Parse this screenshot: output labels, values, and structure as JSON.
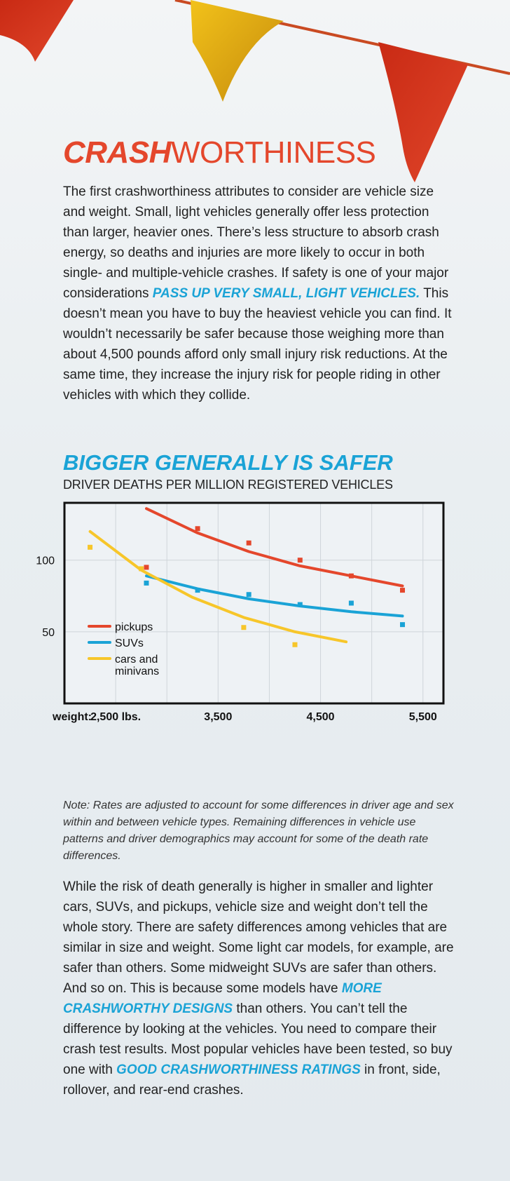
{
  "header": {
    "headline_emphasis": "CRASH",
    "headline_rest": "WORTHINESS"
  },
  "intro": {
    "text_before": "The first crashworthiness attributes to consider are vehicle size and weight. Small, light vehicles generally offer less protection than larger, heavier ones. There’s less structure to absorb crash energy, so deaths and injuries are more likely to occur in both single- and multiple-vehicle crashes. If safety is one of your major considerations ",
    "highlight": "PASS UP VERY SMALL, LIGHT VEHICLES.",
    "text_after": " This doesn’t mean you have to buy the heaviest vehicle you can find. It wouldn’t necessarily be safer because those weighing more than about 4,500 pounds afford only small injury risk reductions. At the same time, they increase the injury risk for people riding in other vehicles with which they collide."
  },
  "chart_data": {
    "type": "line",
    "title": "BIGGER GENERALLY IS SAFER",
    "subtitle": "DRIVER DEATHS PER MILLION REGISTERED VEHICLES",
    "x_label": "weight:",
    "x_ticks": [
      {
        "value": 2500,
        "label": "2,500 lbs."
      },
      {
        "value": 3500,
        "label": "3,500"
      },
      {
        "value": 4500,
        "label": "4,500"
      },
      {
        "value": 5500,
        "label": "5,500"
      }
    ],
    "y_ticks": [
      {
        "value": 100,
        "label": "100"
      },
      {
        "value": 50,
        "label": "50"
      }
    ],
    "xlim": [
      2000,
      5700
    ],
    "ylim": [
      0,
      140
    ],
    "grid": true,
    "legend_position": "bottom-left",
    "series": [
      {
        "name": "pickups",
        "color": "#e4472c",
        "line": [
          [
            2800,
            136
          ],
          [
            3300,
            119
          ],
          [
            3800,
            106
          ],
          [
            4300,
            96
          ],
          [
            4800,
            89
          ],
          [
            5300,
            82
          ]
        ],
        "points": [
          [
            2800,
            95
          ],
          [
            3300,
            122
          ],
          [
            3800,
            112
          ],
          [
            4300,
            100
          ],
          [
            4800,
            89
          ],
          [
            5300,
            79
          ]
        ]
      },
      {
        "name": "SUVs",
        "color": "#1aa3d6",
        "line": [
          [
            2800,
            89
          ],
          [
            3300,
            80
          ],
          [
            3800,
            73
          ],
          [
            4300,
            68
          ],
          [
            4800,
            64
          ],
          [
            5300,
            61
          ]
        ],
        "points": [
          [
            2800,
            84
          ],
          [
            3300,
            79
          ],
          [
            3800,
            76
          ],
          [
            4300,
            69
          ],
          [
            4800,
            70
          ],
          [
            5300,
            55
          ]
        ]
      },
      {
        "name": "cars and minivans",
        "label_lines": [
          "cars and",
          "minivans"
        ],
        "color": "#f7c62a",
        "line": [
          [
            2250,
            120
          ],
          [
            2750,
            93
          ],
          [
            3250,
            74
          ],
          [
            3750,
            60
          ],
          [
            4250,
            50
          ],
          [
            4750,
            43
          ]
        ],
        "points": [
          [
            2250,
            109
          ],
          [
            2750,
            94
          ],
          [
            3750,
            53
          ],
          [
            4250,
            41
          ]
        ]
      }
    ]
  },
  "note": {
    "text": "Note: Rates are adjusted to account for some differences in driver age and sex within and between vehicle types. Remaining differences in vehicle use patterns and driver demographics may account for some of the death rate differences."
  },
  "closing": {
    "text_1": "While the risk of death generally is higher in smaller and lighter cars, SUVs, and pickups, vehicle size and weight don’t tell the whole story. There are safety differences among vehicles that are similar in size and weight. Some light car models, for example, are safer than others. Some midweight SUVs are safer than others. And so on. This is because some models have ",
    "highlight_1": "MORE CRASHWORTHY DESIGNS",
    "text_2": " than others. You can’t tell the difference by looking at the vehicles. You need to compare their crash test results. Most popular vehicles have been tested, so buy one with ",
    "highlight_2": "GOOD CRASHWORTHINESS RATINGS",
    "text_3": " in front, side, rollover, and rear-end crashes."
  },
  "colors": {
    "accent_red": "#e4472c",
    "accent_blue": "#1aa3d6",
    "accent_yellow": "#f7c62a"
  }
}
